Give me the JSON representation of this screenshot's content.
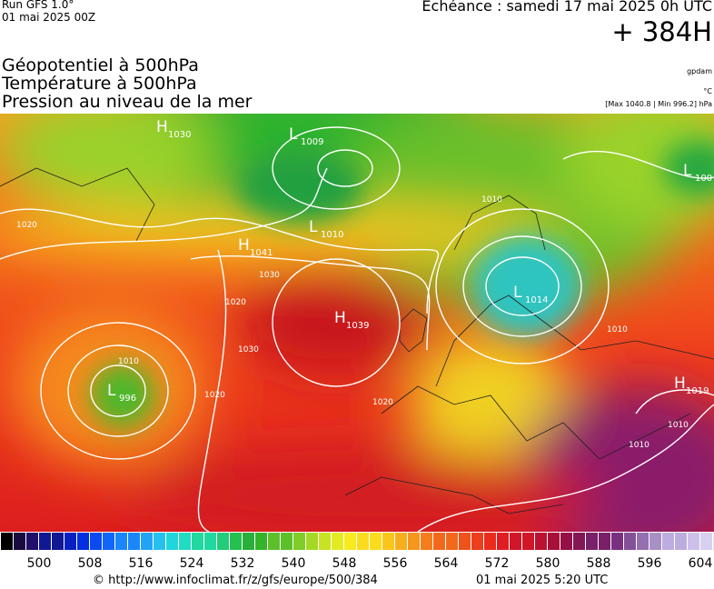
{
  "header": {
    "run": "Run GFS 1.0°",
    "run_date": "01 mai 2025 00Z",
    "echeance": "Echéance : samedi 17 mai 2025 0h UTC",
    "lead": "+ 384H",
    "titles": [
      "Géopotentiel à 500hPa",
      "Température à 500hPa",
      "Pression au niveau de la mer"
    ],
    "units": [
      "gpdam",
      "°C",
      "[Max 1040.8 | Min 996.2] hPa"
    ]
  },
  "map": {
    "centers": [
      {
        "symbol": "H",
        "value": "1030"
      },
      {
        "symbol": "L",
        "value": "1009"
      },
      {
        "symbol": "L",
        "value": "1010"
      },
      {
        "symbol": "H",
        "value": "1041"
      },
      {
        "symbol": "H",
        "value": "1039"
      },
      {
        "symbol": "L",
        "value": "996"
      },
      {
        "symbol": "L",
        "value": "1014"
      },
      {
        "symbol": "L",
        "value": "100"
      },
      {
        "symbol": "H",
        "value": "1019"
      }
    ],
    "isobar_labels": [
      "1020",
      "1030",
      "1030",
      "1020",
      "1010",
      "1010",
      "1020",
      "1010",
      "1010",
      "1010",
      "1020"
    ]
  },
  "colorbar": {
    "ticks": [
      500,
      508,
      516,
      524,
      532,
      540,
      548,
      556,
      564,
      572,
      580,
      588,
      596,
      604
    ]
  },
  "footer": {
    "url": "© http://www.infoclimat.fr/z/gfs/europe/500/384",
    "time": "01 mai 2025  5:20 UTC"
  }
}
